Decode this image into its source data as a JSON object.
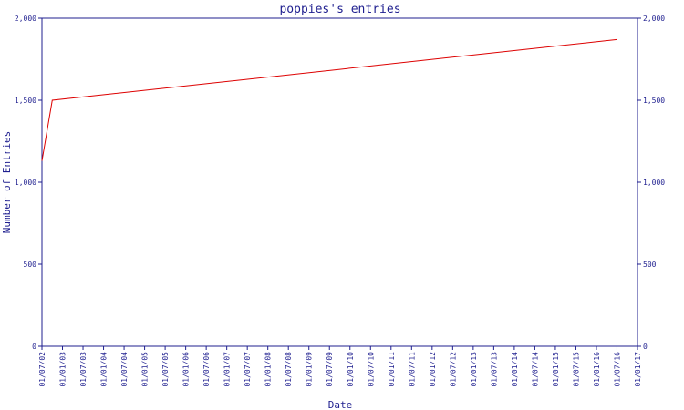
{
  "chart_data": {
    "type": "line",
    "title": "poppies's entries",
    "xlabel": "Date",
    "ylabel": "Number of Entries",
    "ylim": [
      0,
      2000
    ],
    "grid": false,
    "y_ticks": [
      {
        "value": 0,
        "label": "0"
      },
      {
        "value": 500,
        "label": "500"
      },
      {
        "value": 1000,
        "label": "1,000"
      },
      {
        "value": 1500,
        "label": "1,500"
      },
      {
        "value": 2000,
        "label": "2,000"
      }
    ],
    "x_ticks": [
      "01/07/02",
      "01/01/03",
      "01/07/03",
      "01/01/04",
      "01/07/04",
      "01/01/05",
      "01/07/05",
      "01/01/06",
      "01/07/06",
      "01/01/07",
      "01/07/07",
      "01/01/08",
      "01/07/08",
      "01/01/09",
      "01/07/09",
      "01/01/10",
      "01/07/10",
      "01/01/11",
      "01/07/11",
      "01/01/12",
      "01/07/12",
      "01/01/13",
      "01/07/13",
      "01/01/14",
      "01/07/14",
      "01/01/15",
      "01/07/15",
      "01/01/16",
      "01/07/16",
      "01/01/17"
    ],
    "series": [
      {
        "color": "#dd0000",
        "points": [
          {
            "x": "2002-07-01",
            "y": 1130
          },
          {
            "x": "2002-10-01",
            "y": 1500
          },
          {
            "x": "2016-07-01",
            "y": 1870
          }
        ]
      }
    ],
    "colors": {
      "axis": "#1f1f8f",
      "text": "#1f1f8f",
      "line": "#dd0000"
    }
  }
}
